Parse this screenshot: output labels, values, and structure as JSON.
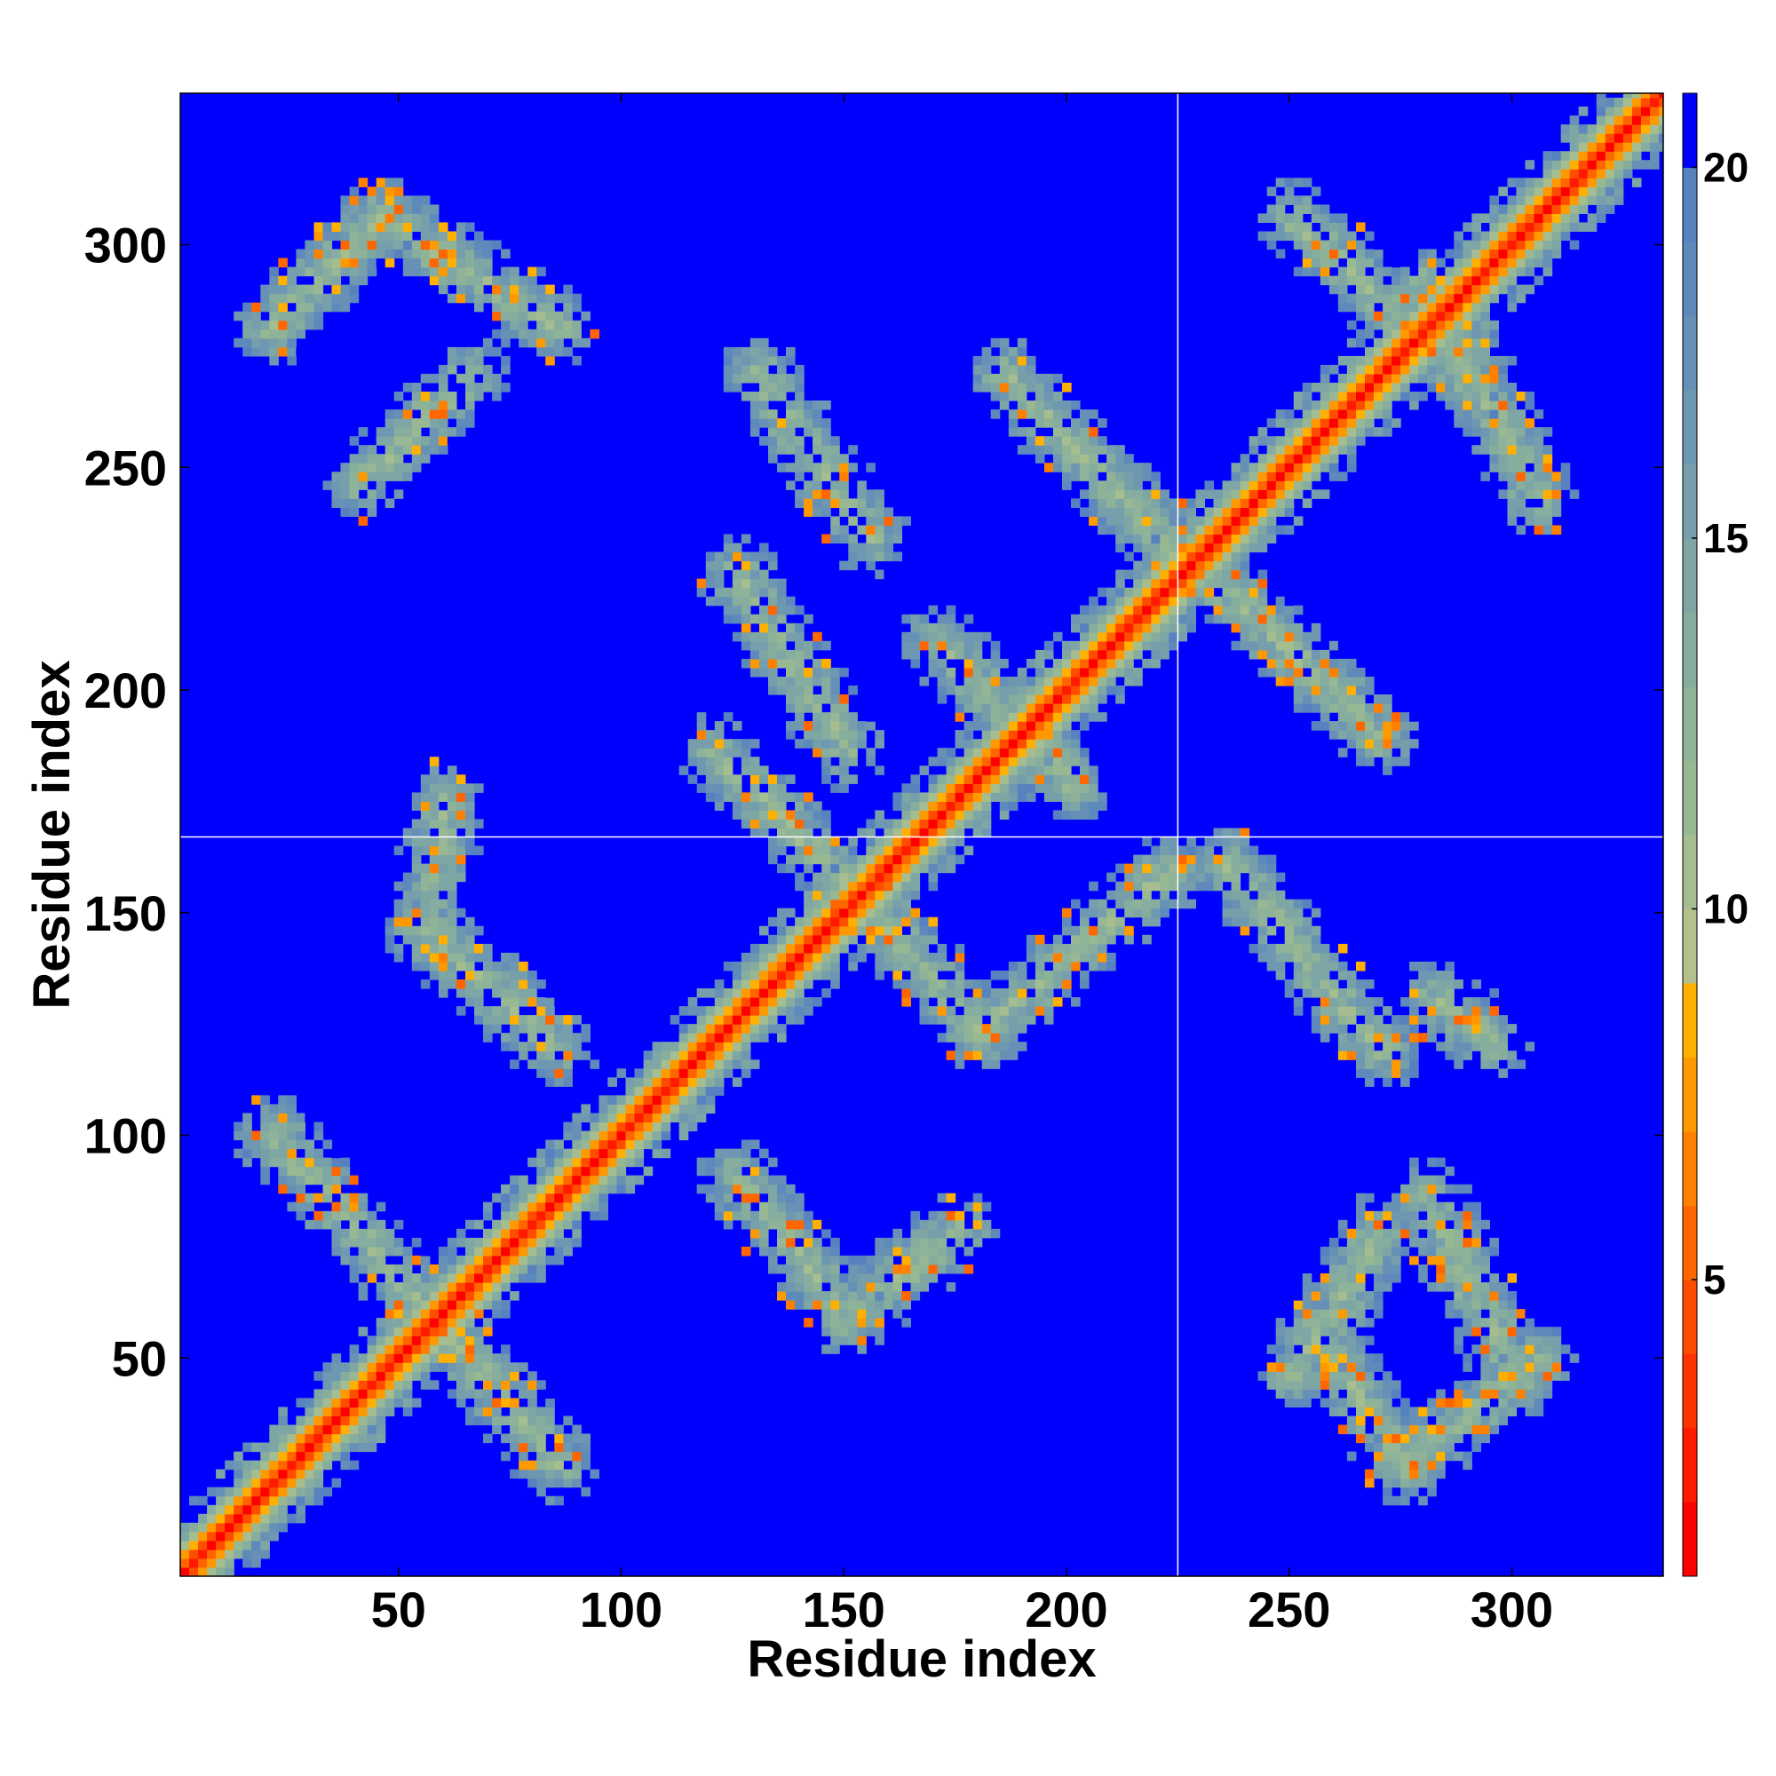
{
  "chart_data": {
    "type": "heatmap",
    "title": "",
    "xlabel": "Residue index",
    "ylabel": "Residue index",
    "xlim": [
      1,
      334
    ],
    "ylim": [
      1,
      334
    ],
    "x_ticks": [
      50,
      100,
      150,
      200,
      250,
      300
    ],
    "y_ticks": [
      50,
      100,
      150,
      200,
      250,
      300
    ],
    "colorbar": {
      "range": [
        1,
        21
      ],
      "ticks": [
        5,
        10,
        15,
        20
      ],
      "levels": [
        {
          "upper": 2,
          "color": "#ff0000"
        },
        {
          "upper": 3,
          "color": "#ff1a00"
        },
        {
          "upper": 4,
          "color": "#ff3300"
        },
        {
          "upper": 5,
          "color": "#ff4d00"
        },
        {
          "upper": 6,
          "color": "#ff6600"
        },
        {
          "upper": 7,
          "color": "#ff8000"
        },
        {
          "upper": 8,
          "color": "#ff9900"
        },
        {
          "upper": 9,
          "color": "#ffb000"
        },
        {
          "upper": 10,
          "color": "#b4c18c"
        },
        {
          "upper": 11,
          "color": "#a6bd8f"
        },
        {
          "upper": 12,
          "color": "#98b893"
        },
        {
          "upper": 13,
          "color": "#8fb398"
        },
        {
          "upper": 14,
          "color": "#86ad9e"
        },
        {
          "upper": 15,
          "color": "#7ea6a4"
        },
        {
          "upper": 16,
          "color": "#769fab"
        },
        {
          "upper": 17,
          "color": "#6e98b1"
        },
        {
          "upper": 18,
          "color": "#6690b6"
        },
        {
          "upper": 19,
          "color": "#5e89bb"
        },
        {
          "upper": 20,
          "color": "#5882bf"
        },
        {
          "upper": 21,
          "color": "#0000ff"
        }
      ]
    },
    "background_color": "#0000ff",
    "divider_lines": {
      "x": 225,
      "y": 167
    },
    "diagonal_band_halfwidth": 9,
    "contact_bands": [
      {
        "from": [
          20,
          100
        ],
        "to": [
          60,
          55
        ]
      },
      {
        "from": [
          55,
          60
        ],
        "to": [
          85,
          25
        ]
      },
      {
        "from": [
          60,
          175
        ],
        "to": [
          55,
          145
        ]
      },
      {
        "from": [
          55,
          145
        ],
        "to": [
          85,
          118
        ]
      },
      {
        "from": [
          120,
          185
        ],
        "to": [
          155,
          150
        ]
      },
      {
        "from": [
          155,
          150
        ],
        "to": [
          180,
          122
        ]
      },
      {
        "from": [
          180,
          122
        ],
        "to": [
          222,
          158
        ]
      },
      {
        "from": [
          125,
          90
        ],
        "to": [
          150,
          58
        ]
      },
      {
        "from": [
          150,
          58
        ],
        "to": [
          175,
          78
        ]
      },
      {
        "from": [
          125,
          225
        ],
        "to": [
          150,
          185
        ]
      },
      {
        "from": [
          130,
          270
        ],
        "to": [
          155,
          233
        ]
      },
      {
        "from": [
          170,
          210
        ],
        "to": [
          200,
          178
        ]
      },
      {
        "from": [
          185,
          270
        ],
        "to": [
          225,
          228
        ]
      },
      {
        "from": [
          228,
          228
        ],
        "to": [
          270,
          188
        ]
      },
      {
        "from": [
          235,
          160
        ],
        "to": [
          270,
          118
        ]
      },
      {
        "from": [
          250,
          305
        ],
        "to": [
          290,
          268
        ]
      },
      {
        "from": [
          280,
          290
        ],
        "to": [
          305,
          242
        ]
      },
      {
        "from": [
          282,
          130
        ],
        "to": [
          295,
          120
        ]
      },
      {
        "from": [
          20,
          280
        ],
        "to": [
          45,
          305
        ]
      },
      {
        "from": [
          45,
          305
        ],
        "to": [
          85,
          280
        ]
      },
      {
        "from": [
          40,
          245
        ],
        "to": [
          65,
          270
        ]
      },
      {
        "from": [
          255,
          55
        ],
        "to": [
          275,
          25
        ]
      },
      {
        "from": [
          280,
          85
        ],
        "to": [
          300,
          45
        ]
      },
      {
        "from": [
          250,
          45
        ],
        "to": [
          270,
          78
        ]
      },
      {
        "from": [
          275,
          25
        ],
        "to": [
          305,
          48
        ]
      }
    ]
  }
}
